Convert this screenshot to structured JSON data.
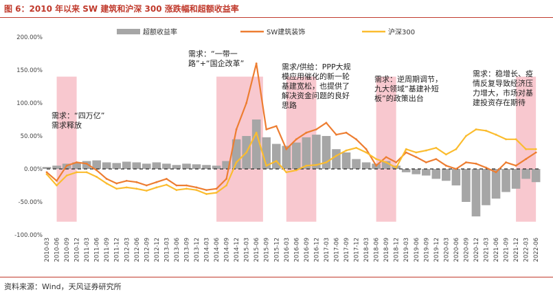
{
  "title": "图 6：2010 年以来 SW 建筑和沪深 300 涨跌幅和超额收益率",
  "source": "资料来源：Wind，天风证券研究所",
  "colors": {
    "excess": "#a6a6a6",
    "sw": "#ed7d31",
    "hs300": "#fbbc2e",
    "shade": "#f8c8cf",
    "accent": "#c0392b"
  },
  "chart_data": {
    "type": "line",
    "title": "2010 年以来 SW 建筑和沪深 300 涨跌幅和超额收益率",
    "ylim": [
      -100,
      200
    ],
    "yticks": [
      "200.00%",
      "150.00%",
      "100.00%",
      "50.00%",
      "0.00%",
      "-50.00%",
      "-100.00%"
    ],
    "ytick_values": [
      200,
      150,
      100,
      50,
      0,
      -50,
      -100
    ],
    "x_start": "2010-03",
    "x_end": "2022-07",
    "xticks": [
      "2010-03",
      "2010-06",
      "2010-09",
      "2010-12",
      "2011-03",
      "2011-06",
      "2011-09",
      "2011-12",
      "2012-03",
      "2012-06",
      "2012-09",
      "2012-12",
      "2013-03",
      "2013-06",
      "2013-09",
      "2013-12",
      "2014-03",
      "2014-06",
      "2014-09",
      "2014-12",
      "2015-03",
      "2015-06",
      "2015-09",
      "2015-12",
      "2016-03",
      "2016-06",
      "2016-09",
      "2016-12",
      "2017-03",
      "2017-06",
      "2017-09",
      "2017-12",
      "2018-03",
      "2018-06",
      "2018-09",
      "2018-12",
      "2019-03",
      "2019-06",
      "2019-09",
      "2019-12",
      "2020-03",
      "2020-06",
      "2020-09",
      "2020-12",
      "2021-03",
      "2021-06",
      "2021-09",
      "2021-12",
      "2022-03",
      "2022-06"
    ],
    "legend": [
      "超额收益率",
      "SW建筑装饰",
      "沪深300"
    ],
    "series": [
      {
        "name": "超额收益率",
        "kind": "bar",
        "points": [
          [
            "2010-03",
            3
          ],
          [
            "2010-06",
            5
          ],
          [
            "2010-09",
            8
          ],
          [
            "2010-12",
            10
          ],
          [
            "2011-03",
            12
          ],
          [
            "2011-06",
            13
          ],
          [
            "2011-09",
            10
          ],
          [
            "2011-12",
            9
          ],
          [
            "2012-03",
            11
          ],
          [
            "2012-06",
            10
          ],
          [
            "2012-09",
            8
          ],
          [
            "2012-12",
            10
          ],
          [
            "2013-03",
            8
          ],
          [
            "2013-06",
            6
          ],
          [
            "2013-09",
            8
          ],
          [
            "2013-12",
            7
          ],
          [
            "2014-03",
            6
          ],
          [
            "2014-06",
            5
          ],
          [
            "2014-09",
            12
          ],
          [
            "2014-12",
            45
          ],
          [
            "2015-03",
            50
          ],
          [
            "2015-06",
            75
          ],
          [
            "2015-09",
            48
          ],
          [
            "2015-12",
            38
          ],
          [
            "2016-03",
            35
          ],
          [
            "2016-06",
            40
          ],
          [
            "2016-09",
            48
          ],
          [
            "2016-12",
            52
          ],
          [
            "2017-03",
            50
          ],
          [
            "2017-06",
            30
          ],
          [
            "2017-09",
            25
          ],
          [
            "2017-12",
            15
          ],
          [
            "2018-03",
            10
          ],
          [
            "2018-06",
            8
          ],
          [
            "2018-09",
            12
          ],
          [
            "2018-12",
            5
          ],
          [
            "2019-03",
            -5
          ],
          [
            "2019-06",
            -8
          ],
          [
            "2019-09",
            -10
          ],
          [
            "2019-12",
            -15
          ],
          [
            "2020-03",
            -18
          ],
          [
            "2020-06",
            -25
          ],
          [
            "2020-09",
            -50
          ],
          [
            "2020-12",
            -72
          ],
          [
            "2021-03",
            -55
          ],
          [
            "2021-06",
            -45
          ],
          [
            "2021-09",
            -35
          ],
          [
            "2021-12",
            -30
          ],
          [
            "2022-03",
            -15
          ],
          [
            "2022-06",
            -20
          ]
        ]
      },
      {
        "name": "SW建筑装饰",
        "kind": "line",
        "points": [
          [
            "2010-03",
            -5
          ],
          [
            "2010-06",
            -18
          ],
          [
            "2010-09",
            5
          ],
          [
            "2010-12",
            10
          ],
          [
            "2011-03",
            8
          ],
          [
            "2011-06",
            -2
          ],
          [
            "2011-09",
            -15
          ],
          [
            "2011-12",
            -22
          ],
          [
            "2012-03",
            -18
          ],
          [
            "2012-06",
            -20
          ],
          [
            "2012-09",
            -25
          ],
          [
            "2012-12",
            -20
          ],
          [
            "2013-03",
            -15
          ],
          [
            "2013-06",
            -25
          ],
          [
            "2013-09",
            -25
          ],
          [
            "2013-12",
            -28
          ],
          [
            "2014-03",
            -32
          ],
          [
            "2014-06",
            -30
          ],
          [
            "2014-09",
            -15
          ],
          [
            "2014-12",
            60
          ],
          [
            "2015-03",
            100
          ],
          [
            "2015-06",
            160
          ],
          [
            "2015-09",
            60
          ],
          [
            "2015-12",
            65
          ],
          [
            "2016-03",
            30
          ],
          [
            "2016-06",
            45
          ],
          [
            "2016-09",
            55
          ],
          [
            "2016-12",
            60
          ],
          [
            "2017-03",
            70
          ],
          [
            "2017-06",
            52
          ],
          [
            "2017-09",
            55
          ],
          [
            "2017-12",
            45
          ],
          [
            "2018-03",
            30
          ],
          [
            "2018-06",
            5
          ],
          [
            "2018-09",
            18
          ],
          [
            "2018-12",
            10
          ],
          [
            "2019-03",
            25
          ],
          [
            "2019-06",
            18
          ],
          [
            "2019-09",
            10
          ],
          [
            "2019-12",
            15
          ],
          [
            "2020-03",
            5
          ],
          [
            "2020-06",
            0
          ],
          [
            "2020-09",
            10
          ],
          [
            "2020-12",
            8
          ],
          [
            "2021-03",
            2
          ],
          [
            "2021-06",
            -5
          ],
          [
            "2021-09",
            10
          ],
          [
            "2021-12",
            5
          ],
          [
            "2022-03",
            15
          ],
          [
            "2022-06",
            25
          ]
        ]
      },
      {
        "name": "沪深300",
        "kind": "line",
        "points": [
          [
            "2010-03",
            -8
          ],
          [
            "2010-06",
            -25
          ],
          [
            "2010-09",
            -10
          ],
          [
            "2010-12",
            -5
          ],
          [
            "2011-03",
            -5
          ],
          [
            "2011-06",
            -12
          ],
          [
            "2011-09",
            -22
          ],
          [
            "2011-12",
            -30
          ],
          [
            "2012-03",
            -28
          ],
          [
            "2012-06",
            -30
          ],
          [
            "2012-09",
            -33
          ],
          [
            "2012-12",
            -28
          ],
          [
            "2013-03",
            -24
          ],
          [
            "2013-06",
            -32
          ],
          [
            "2013-09",
            -30
          ],
          [
            "2013-12",
            -32
          ],
          [
            "2014-03",
            -38
          ],
          [
            "2014-06",
            -36
          ],
          [
            "2014-09",
            -25
          ],
          [
            "2014-12",
            10
          ],
          [
            "2015-03",
            25
          ],
          [
            "2015-06",
            55
          ],
          [
            "2015-09",
            5
          ],
          [
            "2015-12",
            12
          ],
          [
            "2016-03",
            -5
          ],
          [
            "2016-06",
            -2
          ],
          [
            "2016-09",
            5
          ],
          [
            "2016-12",
            6
          ],
          [
            "2017-03",
            10
          ],
          [
            "2017-06",
            20
          ],
          [
            "2017-09",
            28
          ],
          [
            "2017-12",
            32
          ],
          [
            "2018-03",
            25
          ],
          [
            "2018-06",
            15
          ],
          [
            "2018-09",
            10
          ],
          [
            "2018-12",
            2
          ],
          [
            "2019-03",
            30
          ],
          [
            "2019-06",
            25
          ],
          [
            "2019-09",
            28
          ],
          [
            "2019-12",
            32
          ],
          [
            "2020-03",
            22
          ],
          [
            "2020-06",
            30
          ],
          [
            "2020-09",
            50
          ],
          [
            "2020-12",
            60
          ],
          [
            "2021-03",
            58
          ],
          [
            "2021-06",
            52
          ],
          [
            "2021-09",
            45
          ],
          [
            "2021-12",
            45
          ],
          [
            "2022-03",
            30
          ],
          [
            "2022-06",
            30
          ]
        ]
      }
    ],
    "shaded_ranges": [
      [
        "2010-06",
        "2010-12"
      ],
      [
        "2014-06",
        "2015-08"
      ],
      [
        "2016-03",
        "2016-12"
      ],
      [
        "2018-06",
        "2018-12"
      ],
      [
        "2021-12",
        "2022-06"
      ]
    ],
    "annotations": [
      {
        "text": [
          "需求：“四万亿”",
          "需求释放"
        ],
        "at": "2010-03"
      },
      {
        "text": [
          "需求：“一带一",
          "路”+“国企改革”"
        ],
        "at": "2014-06"
      },
      {
        "text": [
          "需求/供给：PPP大规",
          "模应用催化的新一轮",
          "基建宽松，也提供了",
          "解决资金问题的良好",
          "思路"
        ],
        "at": "2016-03"
      },
      {
        "text": [
          "需求：逆周期调节，",
          "九大领域”基建补短",
          "板”的政策出台"
        ],
        "at": "2018-03"
      },
      {
        "text": [
          "需求：稳增长、疫",
          "情反复导致经济压",
          "力增大，市场对基",
          "建投资存在期待"
        ],
        "at": "2020-09"
      }
    ]
  }
}
